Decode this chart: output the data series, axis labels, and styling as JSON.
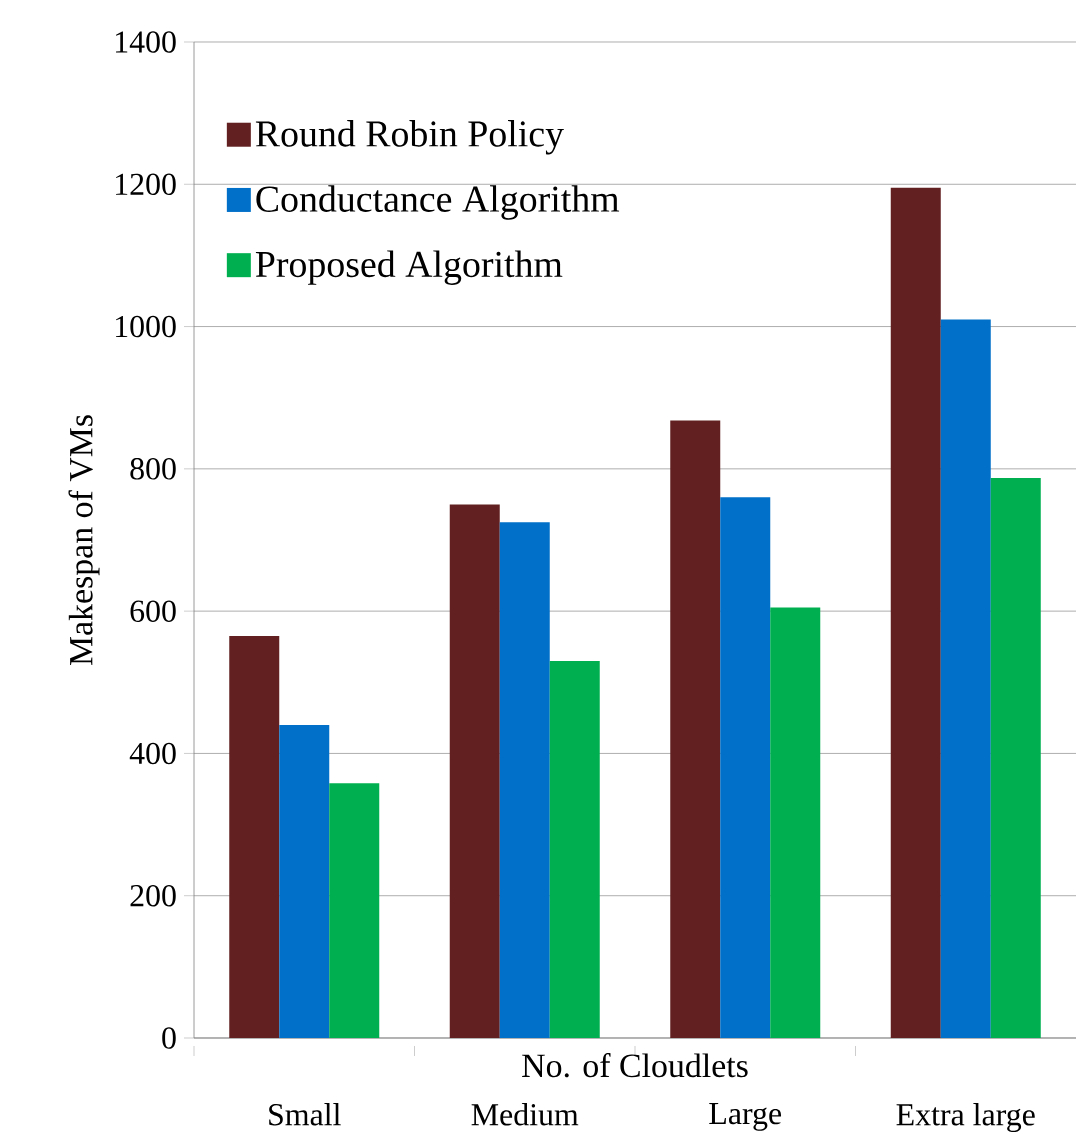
{
  "chart_data": {
    "type": "bar",
    "xlabel": "No. of Cloudlets",
    "ylabel": "Makespan of VMs",
    "categories": [
      "Small",
      "Medium",
      "Large",
      "Extra large"
    ],
    "series": [
      {
        "name": "Round Robin Policy",
        "color": "#622020",
        "values": [
          565,
          750,
          868,
          1195
        ]
      },
      {
        "name": "Conductance Algorithm",
        "color": "#0070c8",
        "values": [
          440,
          725,
          760,
          1010
        ]
      },
      {
        "name": "Proposed Algorithm",
        "color": "#00b050",
        "values": [
          358,
          530,
          605,
          787
        ]
      }
    ],
    "ylim": [
      0,
      1400
    ],
    "yticks": [
      0,
      200,
      400,
      600,
      800,
      1000,
      1200,
      1400
    ],
    "grid": "y",
    "legend": "top left"
  }
}
